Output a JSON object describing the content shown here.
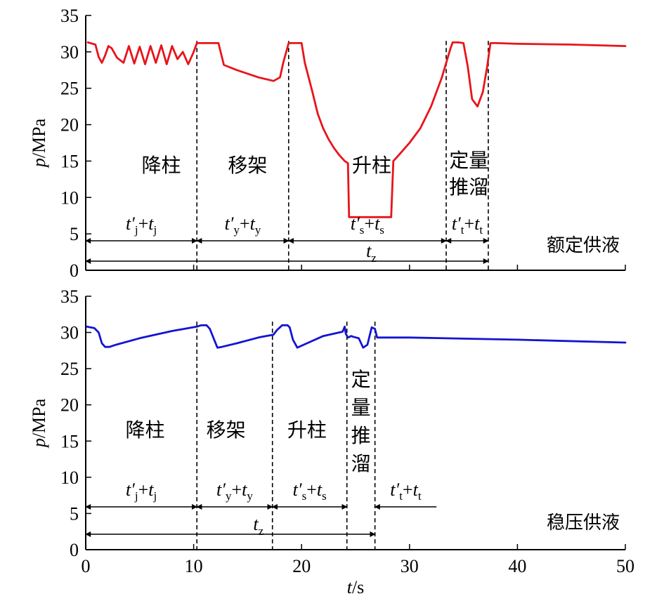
{
  "chart_data": [
    {
      "type": "line",
      "panel": "top",
      "color": "#e8141b",
      "mode_label": "额定供液",
      "ylabel": "p/MPa",
      "ylabel_var": "p",
      "ylabel_unit": "/MPa",
      "xlim": [
        0,
        50
      ],
      "ylim": [
        0,
        35
      ],
      "yticks": [
        0,
        5,
        10,
        15,
        20,
        25,
        30,
        35
      ],
      "xticks": [
        0,
        10,
        20,
        30,
        40,
        50
      ],
      "series": [
        {
          "x": [
            0.2,
            0.9,
            1.2,
            1.5,
            1.8,
            2.1,
            2.4,
            2.9,
            3.5,
            4.0,
            4.5,
            5.0,
            5.5,
            6.0,
            6.5,
            7.0,
            7.5,
            8.0,
            8.5,
            9.0,
            9.5,
            10.0,
            10.3,
            10.7,
            11.5,
            12.3,
            12.8,
            14.0,
            16.0,
            17.4,
            18.0,
            18.3,
            18.8,
            19.0,
            19.5,
            20.0,
            20.3,
            21.0,
            21.5,
            22.0,
            22.5,
            23.0,
            23.5,
            24.0,
            24.3,
            24.4,
            24.5,
            25.5,
            26.5,
            27.5,
            28.3,
            28.5,
            29.0,
            30.0,
            31.0,
            32.0,
            33.0,
            33.5,
            33.8,
            34.0,
            34.5,
            35.0,
            35.4,
            35.8,
            36.3,
            36.8,
            37.2,
            37.5,
            38.0,
            40.0,
            45.0,
            50.0
          ],
          "y": [
            31.3,
            31.0,
            29.3,
            28.5,
            29.5,
            30.8,
            30.5,
            29.2,
            28.5,
            30.8,
            28.4,
            30.7,
            28.3,
            30.8,
            28.5,
            30.9,
            28.3,
            30.8,
            29.0,
            30.0,
            28.3,
            30.0,
            31.2,
            31.2,
            31.2,
            31.2,
            28.2,
            27.5,
            26.5,
            26.0,
            26.5,
            28.5,
            31.2,
            31.2,
            31.2,
            31.2,
            28.5,
            24.5,
            21.5,
            19.5,
            18.0,
            16.8,
            15.8,
            15.0,
            14.7,
            7.3,
            7.3,
            7.3,
            7.3,
            7.3,
            7.3,
            15.0,
            15.8,
            17.5,
            19.5,
            22.5,
            26.5,
            29.0,
            30.5,
            31.3,
            31.3,
            31.2,
            28.0,
            23.5,
            22.5,
            24.5,
            28.0,
            31.2,
            31.2,
            31.1,
            31.0,
            30.8
          ]
        }
      ],
      "regions": [
        {
          "label": "降柱",
          "x": 7
        },
        {
          "label": "移架",
          "x": 15
        },
        {
          "label": "升柱",
          "x": 26.5
        },
        {
          "label": "定量推溜",
          "x": 35.5,
          "vertical_split": [
            "定量",
            "推溜"
          ]
        }
      ],
      "boundaries": [
        10.3,
        18.8,
        33.4,
        37.3
      ],
      "intervals": [
        {
          "from": 0,
          "to": 10.3,
          "prime": "t′",
          "sub": "j",
          "plus": "+",
          "var": "t",
          "var_sub": "j"
        },
        {
          "from": 10.3,
          "to": 18.8,
          "prime": "t′",
          "sub": "y",
          "plus": "+",
          "var": "t",
          "var_sub": "y"
        },
        {
          "from": 18.8,
          "to": 33.4,
          "prime": "t′",
          "sub": "s",
          "plus": "+",
          "var": "t",
          "var_sub": "s"
        },
        {
          "from": 33.4,
          "to": 37.3,
          "prime": "t′",
          "sub": "t",
          "plus": "+",
          "var": "t",
          "var_sub": "t"
        }
      ],
      "total": {
        "from": 0,
        "to": 37.3,
        "var": "t",
        "sub": "z"
      }
    },
    {
      "type": "line",
      "panel": "bottom",
      "color": "#1414d2",
      "mode_label": "稳压供液",
      "ylabel": "p/MPa",
      "ylabel_var": "p",
      "ylabel_unit": "/MPa",
      "xlabel": "t/s",
      "xlabel_var": "t",
      "xlabel_unit": "/s",
      "xlim": [
        0,
        50
      ],
      "ylim": [
        0,
        35
      ],
      "yticks": [
        0,
        5,
        10,
        15,
        20,
        25,
        30,
        35
      ],
      "xticks": [
        0,
        10,
        20,
        30,
        40,
        50
      ],
      "series": [
        {
          "x": [
            0.1,
            0.8,
            1.2,
            1.5,
            1.8,
            2.2,
            2.8,
            5.0,
            8.0,
            10.3,
            10.7,
            11.2,
            11.5,
            11.9,
            12.2,
            12.6,
            14.0,
            16.0,
            17.4,
            17.7,
            18.2,
            18.7,
            18.9,
            19.2,
            19.6,
            20.5,
            22.0,
            23.8,
            24.0,
            24.1,
            24.3,
            24.6,
            24.8,
            25.3,
            25.7,
            26.1,
            26.5,
            26.8,
            27.0,
            30.0,
            40.0,
            50.0
          ],
          "y": [
            30.8,
            30.6,
            30.0,
            28.5,
            28.0,
            28.0,
            28.3,
            29.2,
            30.2,
            30.8,
            31.0,
            31.0,
            30.5,
            29.0,
            27.9,
            28.0,
            28.5,
            29.3,
            29.7,
            30.3,
            31.0,
            31.0,
            30.7,
            29.0,
            27.9,
            28.5,
            29.5,
            30.1,
            30.8,
            29.8,
            29.3,
            29.5,
            29.4,
            29.2,
            27.9,
            28.3,
            30.7,
            30.5,
            29.3,
            29.3,
            29.0,
            28.6
          ]
        }
      ],
      "regions": [
        {
          "label": "降柱",
          "x": 5.5
        },
        {
          "label": "移架",
          "x": 13
        },
        {
          "label": "升柱",
          "x": 20.5
        },
        {
          "label": "定量推溜",
          "x": 25.5,
          "vertical_stack": [
            "定",
            "量",
            "推",
            "溜"
          ]
        }
      ],
      "boundaries": [
        10.3,
        17.3,
        24.2,
        26.8
      ],
      "intervals": [
        {
          "from": 0,
          "to": 10.3,
          "prime": "t′",
          "sub": "j",
          "plus": "+",
          "var": "t",
          "var_sub": "j"
        },
        {
          "from": 10.3,
          "to": 17.3,
          "prime": "t′",
          "sub": "y",
          "plus": "+",
          "var": "t",
          "var_sub": "y"
        },
        {
          "from": 17.3,
          "to": 24.2,
          "prime": "t′",
          "sub": "s",
          "plus": "+",
          "var": "t",
          "var_sub": "s"
        },
        {
          "from": 26.8,
          "to": 32.5,
          "prime": "t′",
          "sub": "t",
          "plus": "+",
          "var": "t",
          "var_sub": "t"
        }
      ],
      "total": {
        "from": 0,
        "to": 26.8,
        "var": "t",
        "sub": "z"
      }
    }
  ]
}
